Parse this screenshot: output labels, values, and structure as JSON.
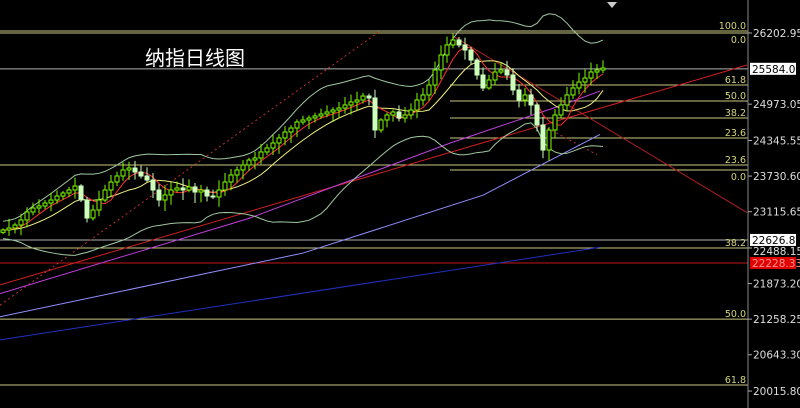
{
  "title": "纳指日线图",
  "colors": {
    "up": "#7CFC00",
    "down": "#ccffbb",
    "ma5": "#ff3030",
    "ma10": "#f0f080",
    "band": "#a0c8a0",
    "fib": "#c8c880",
    "price_line": "#b0b0b0",
    "support_red": "#e02020",
    "axis": "#888888"
  },
  "chart_data": {
    "type": "candlestick",
    "title": "纳指日线图",
    "y_axis_ticks": [
      "26202.95",
      "24973.05",
      "24345.55",
      "23730.60",
      "23115.65",
      "22488.15",
      "21873.20",
      "21258.25",
      "20643.30",
      "20015.80"
    ],
    "y_tick_values": [
      26202.95,
      24973.05,
      24345.55,
      23730.6,
      23115.65,
      22488.15,
      21873.2,
      21258.25,
      20643.3,
      20015.8
    ],
    "ylim": [
      19700,
      26740
    ],
    "price_badges": [
      {
        "label": "25584.08",
        "value": 25584.08,
        "style": "white"
      },
      {
        "label": "22626.83",
        "value": 22626.83,
        "style": "white"
      },
      {
        "label": "22228.33",
        "value": 22228.33,
        "style": "red"
      }
    ],
    "closes": [
      22799,
      22833,
      22885,
      22972,
      23110,
      23179,
      23214,
      23265,
      23317,
      23386,
      23438,
      23490,
      23559,
      23317,
      23006,
      23144,
      23317,
      23490,
      23628,
      23732,
      23836,
      23870,
      23801,
      23732,
      23663,
      23490,
      23317,
      23404,
      23490,
      23525,
      23490,
      23542,
      23455,
      23490,
      23386,
      23369,
      23490,
      23628,
      23749,
      23836,
      23922,
      24008,
      24043,
      24147,
      24216,
      24302,
      24389,
      24492,
      24561,
      24665,
      24700,
      24734,
      24769,
      24803,
      24838,
      24872,
      24907,
      24959,
      25011,
      25045,
      25114,
      25080,
      24527,
      24700,
      24786,
      24838,
      24734,
      24786,
      24872,
      25045,
      25132,
      25304,
      25564,
      25823,
      25996,
      26082,
      25996,
      25909,
      25736,
      25477,
      25253,
      25391,
      25529,
      25564,
      25477,
      25218,
      25045,
      25132,
      24959,
      24613,
      24181,
      24527,
      24786,
      24959,
      25132,
      25253,
      25356,
      25425,
      25529,
      25564,
      25598
    ],
    "fib_levels": [
      {
        "label": "100.0",
        "value": 26238,
        "from": "full"
      },
      {
        "label": "0.0",
        "value": 26202,
        "from": "full"
      },
      {
        "label": "61.8",
        "value": 25304,
        "from": "recent"
      },
      {
        "label": "50.0",
        "value": 25028,
        "from": "recent"
      },
      {
        "label": "38.2",
        "value": 24734,
        "from": "recent"
      },
      {
        "label": "23.6",
        "value": 24389,
        "from": "recent"
      },
      {
        "label": "23.6",
        "value": 23922,
        "from": "full"
      },
      {
        "label": "0.0",
        "value": 23836,
        "from": "recent"
      },
      {
        "label": "38.2",
        "value": 22488,
        "from": "full"
      },
      {
        "label": "50.0",
        "value": 21258,
        "from": "full"
      },
      {
        "label": "61.8",
        "value": 20120,
        "from": "full"
      }
    ],
    "long_ma": [
      {
        "color": "#c040e0",
        "points": [
          [
            -0.5,
            21700
          ],
          [
            41,
            23000
          ],
          [
            74.5,
            24300
          ],
          [
            93,
            24950
          ],
          [
            99.5,
            25200
          ]
        ]
      },
      {
        "color": "#9090ff",
        "points": [
          [
            -0.5,
            21300
          ],
          [
            50,
            22400
          ],
          [
            80,
            23400
          ],
          [
            99.5,
            24450
          ]
        ]
      },
      {
        "color": "#2030c0",
        "points": [
          [
            -0.5,
            20900
          ],
          [
            99.5,
            22500
          ]
        ]
      }
    ],
    "trend_lines": [
      {
        "color": "#d02020",
        "dash": false,
        "points": [
          [
            -0.5,
            21850
          ],
          [
            124,
            25650
          ]
        ]
      },
      {
        "color": "#b02020",
        "dash": false,
        "points": [
          [
            75,
            26150
          ],
          [
            124,
            23100
          ]
        ]
      },
      {
        "color": "#c03030",
        "dash": true,
        "points": [
          [
            -0.5,
            21500
          ],
          [
            63,
            26250
          ]
        ]
      },
      {
        "color": "#c03030",
        "dash": true,
        "points": [
          [
            90,
            24600
          ],
          [
            99,
            24100
          ]
        ]
      }
    ]
  }
}
